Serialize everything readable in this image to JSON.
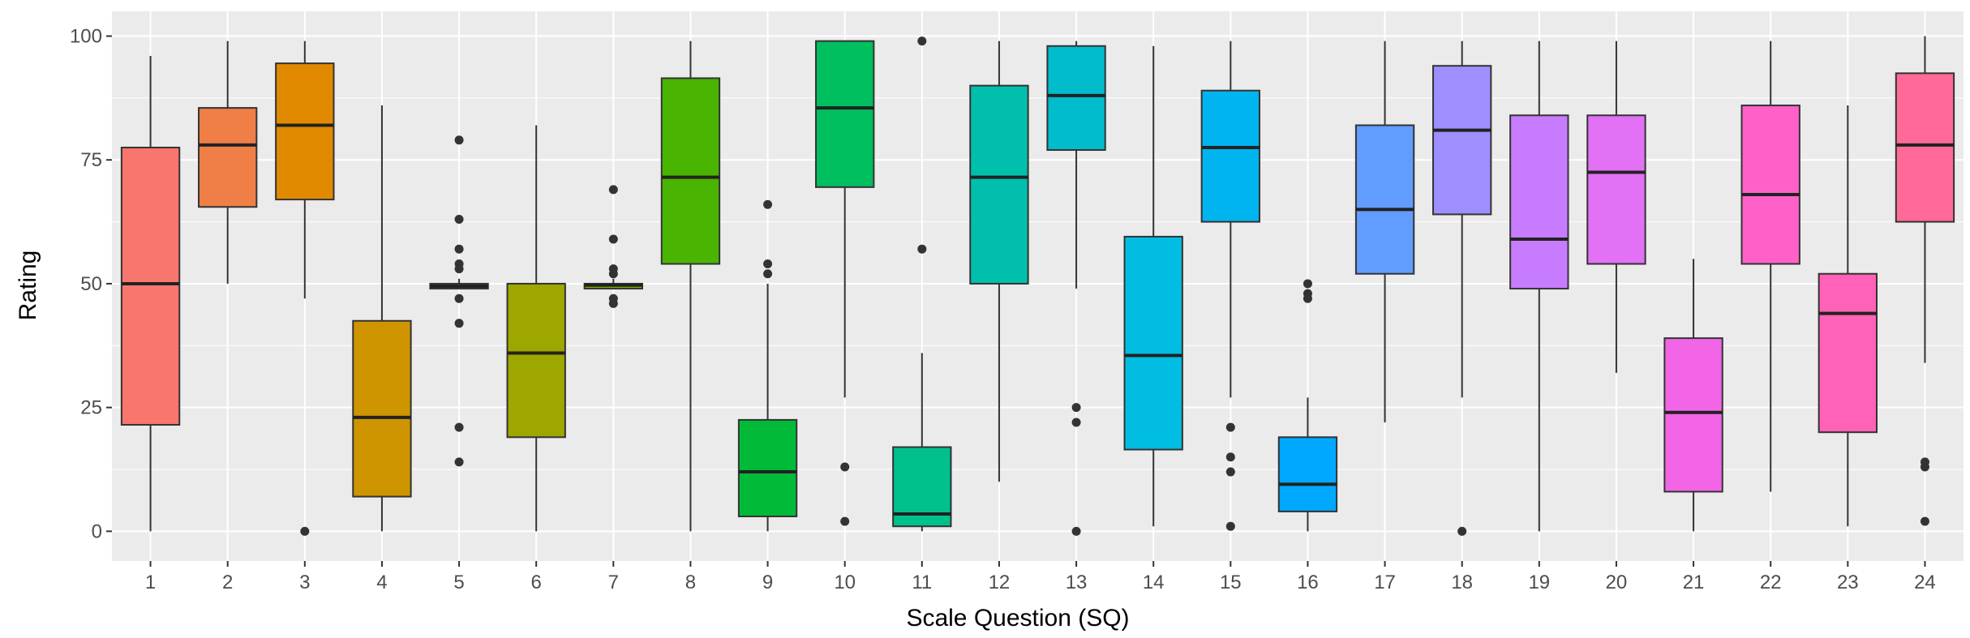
{
  "chart_data": {
    "type": "boxplot",
    "xlabel": "Scale Question (SQ)",
    "ylabel": "Rating",
    "ylim": [
      -6,
      105
    ],
    "yticks": [
      0,
      25,
      50,
      75,
      100
    ],
    "grid": true,
    "legend": "none",
    "panel_background": "#ebebeb",
    "categories": [
      "1",
      "2",
      "3",
      "4",
      "5",
      "6",
      "7",
      "8",
      "9",
      "10",
      "11",
      "12",
      "13",
      "14",
      "15",
      "16",
      "17",
      "18",
      "19",
      "20",
      "21",
      "22",
      "23",
      "24"
    ],
    "boxes": [
      {
        "category": "1",
        "color": "#f8766d",
        "whisker_low": 0,
        "q1": 21.5,
        "median": 50,
        "q3": 77.5,
        "whisker_high": 96,
        "outliers": []
      },
      {
        "category": "2",
        "color": "#ef7f46",
        "whisker_low": 50,
        "q1": 65.5,
        "median": 78,
        "q3": 85.5,
        "whisker_high": 99,
        "outliers": []
      },
      {
        "category": "3",
        "color": "#e18a00",
        "whisker_low": 47,
        "q1": 67,
        "median": 82,
        "q3": 94.5,
        "whisker_high": 99,
        "outliers": [
          0
        ]
      },
      {
        "category": "4",
        "color": "#ce9500",
        "whisker_low": 0,
        "q1": 7,
        "median": 23,
        "q3": 42.5,
        "whisker_high": 86,
        "outliers": []
      },
      {
        "category": "5",
        "color": "#b79f00",
        "whisker_low": 49,
        "q1": 49,
        "median": 49.5,
        "q3": 50,
        "whisker_high": 51,
        "outliers": [
          79,
          63,
          57,
          54,
          53,
          47,
          42,
          21,
          14
        ]
      },
      {
        "category": "6",
        "color": "#9da700",
        "whisker_low": 0,
        "q1": 19,
        "median": 36,
        "q3": 50,
        "whisker_high": 82,
        "outliers": []
      },
      {
        "category": "7",
        "color": "#7cae00",
        "whisker_low": 49,
        "q1": 49,
        "median": 49.7,
        "q3": 50,
        "whisker_high": 51,
        "outliers": [
          69,
          59,
          53,
          52,
          47,
          46
        ]
      },
      {
        "category": "8",
        "color": "#49b500",
        "whisker_low": 0,
        "q1": 54,
        "median": 71.5,
        "q3": 91.5,
        "whisker_high": 99,
        "outliers": []
      },
      {
        "category": "9",
        "color": "#00ba38",
        "whisker_low": 0,
        "q1": 3,
        "median": 12,
        "q3": 22.5,
        "whisker_high": 50,
        "outliers": [
          66,
          54,
          52
        ]
      },
      {
        "category": "10",
        "color": "#00bf5f",
        "whisker_low": 27,
        "q1": 69.5,
        "median": 85.5,
        "q3": 99,
        "whisker_high": 99,
        "outliers": [
          13,
          2
        ]
      },
      {
        "category": "11",
        "color": "#00c08b",
        "whisker_low": 0,
        "q1": 1,
        "median": 3.5,
        "q3": 17,
        "whisker_high": 36,
        "outliers": [
          99,
          57
        ]
      },
      {
        "category": "12",
        "color": "#00c0ad",
        "whisker_low": 10,
        "q1": 50,
        "median": 71.5,
        "q3": 90,
        "whisker_high": 99,
        "outliers": []
      },
      {
        "category": "13",
        "color": "#00bccc",
        "whisker_low": 49,
        "q1": 77,
        "median": 88,
        "q3": 98,
        "whisker_high": 99,
        "outliers": [
          25,
          22,
          0
        ]
      },
      {
        "category": "14",
        "color": "#00bde1",
        "whisker_low": 1,
        "q1": 16.5,
        "median": 35.5,
        "q3": 59.5,
        "whisker_high": 98,
        "outliers": []
      },
      {
        "category": "15",
        "color": "#00b4ef",
        "whisker_low": 27,
        "q1": 62.5,
        "median": 77.5,
        "q3": 89,
        "whisker_high": 99,
        "outliers": [
          21,
          15,
          12,
          1
        ]
      },
      {
        "category": "16",
        "color": "#00a9ff",
        "whisker_low": 0,
        "q1": 4,
        "median": 9.5,
        "q3": 19,
        "whisker_high": 27,
        "outliers": [
          50,
          48,
          47
        ]
      },
      {
        "category": "17",
        "color": "#619cff",
        "whisker_low": 22,
        "q1": 52,
        "median": 65,
        "q3": 82,
        "whisker_high": 99,
        "outliers": []
      },
      {
        "category": "18",
        "color": "#9e8fff",
        "whisker_low": 27,
        "q1": 64,
        "median": 81,
        "q3": 94,
        "whisker_high": 99,
        "outliers": [
          0
        ]
      },
      {
        "category": "19",
        "color": "#c77cff",
        "whisker_low": 0,
        "q1": 49,
        "median": 59,
        "q3": 84,
        "whisker_high": 99,
        "outliers": []
      },
      {
        "category": "20",
        "color": "#e271f5",
        "whisker_low": 32,
        "q1": 54,
        "median": 72.5,
        "q3": 84,
        "whisker_high": 99,
        "outliers": []
      },
      {
        "category": "21",
        "color": "#f265e7",
        "whisker_low": 0,
        "q1": 8,
        "median": 24,
        "q3": 39,
        "whisker_high": 55,
        "outliers": []
      },
      {
        "category": "22",
        "color": "#ff61c9",
        "whisker_low": 8,
        "q1": 54,
        "median": 68,
        "q3": 86,
        "whisker_high": 99,
        "outliers": []
      },
      {
        "category": "23",
        "color": "#ff62b6",
        "whisker_low": 1,
        "q1": 20,
        "median": 44,
        "q3": 52,
        "whisker_high": 86,
        "outliers": []
      },
      {
        "category": "24",
        "color": "#ff6a98",
        "whisker_low": 34,
        "q1": 62.5,
        "median": 78,
        "q3": 92.5,
        "whisker_high": 100,
        "outliers": [
          14,
          13,
          2
        ]
      }
    ]
  }
}
